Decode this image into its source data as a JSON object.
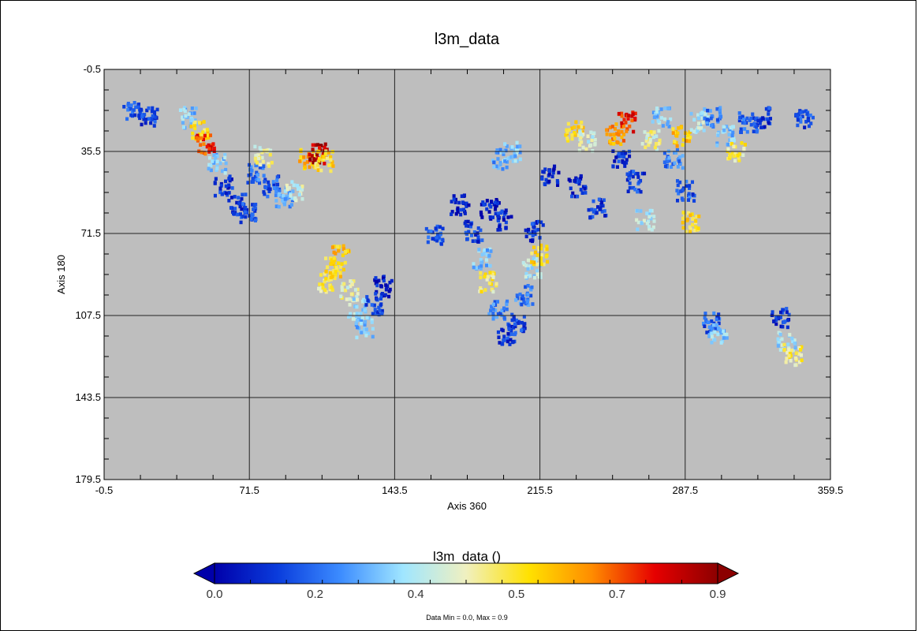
{
  "chart_data": {
    "type": "heatmap",
    "title": "l3m_data",
    "xlabel": "Axis 360",
    "ylabel": "Axis 180",
    "xlim": [
      -0.5,
      359.5
    ],
    "ylim": [
      179.5,
      -0.5
    ],
    "x_ticks": [
      "-0.5",
      "71.5",
      "143.5",
      "215.5",
      "287.5",
      "359.5"
    ],
    "y_ticks": [
      "-0.5",
      "35.5",
      "71.5",
      "107.5",
      "143.5",
      "179.5"
    ],
    "x_tick_values": [
      -0.5,
      71.5,
      143.5,
      215.5,
      287.5,
      359.5
    ],
    "y_tick_values": [
      -0.5,
      35.5,
      71.5,
      107.5,
      143.5,
      179.5
    ],
    "grid": true,
    "background_color": "#bebebe",
    "colorbar": {
      "title": "l3m_data ()",
      "tick_labels": [
        "0.0",
        "0.2",
        "0.4",
        "0.5",
        "0.7",
        "0.9"
      ],
      "tick_values": [
        0.0,
        0.2,
        0.4,
        0.5,
        0.7,
        0.9
      ],
      "range": [
        0.0,
        0.9
      ],
      "colors": [
        "#0000aa",
        "#0a3cdc",
        "#3c8cff",
        "#a0e6ff",
        "#f0f0c0",
        "#ffe100",
        "#ff8c00",
        "#e60000",
        "#8c0000"
      ]
    },
    "blobs": [
      {
        "x": 13,
        "y": 17,
        "v": 0.15
      },
      {
        "x": 21,
        "y": 19,
        "v": 0.1
      },
      {
        "x": 40,
        "y": 20,
        "v": 0.3
      },
      {
        "x": 46,
        "y": 26,
        "v": 0.55
      },
      {
        "x": 49,
        "y": 32,
        "v": 0.75
      },
      {
        "x": 55,
        "y": 40,
        "v": 0.3
      },
      {
        "x": 58,
        "y": 50,
        "v": 0.1
      },
      {
        "x": 65,
        "y": 58,
        "v": 0.08
      },
      {
        "x": 70,
        "y": 62,
        "v": 0.12
      },
      {
        "x": 74,
        "y": 45,
        "v": 0.2
      },
      {
        "x": 78,
        "y": 37,
        "v": 0.45
      },
      {
        "x": 82,
        "y": 50,
        "v": 0.15
      },
      {
        "x": 88,
        "y": 55,
        "v": 0.25
      },
      {
        "x": 93,
        "y": 52,
        "v": 0.4
      },
      {
        "x": 100,
        "y": 38,
        "v": 0.6
      },
      {
        "x": 105,
        "y": 36,
        "v": 0.85
      },
      {
        "x": 108,
        "y": 39,
        "v": 0.55
      },
      {
        "x": 109,
        "y": 92,
        "v": 0.5
      },
      {
        "x": 113,
        "y": 86,
        "v": 0.55
      },
      {
        "x": 116,
        "y": 80,
        "v": 0.6
      },
      {
        "x": 120,
        "y": 96,
        "v": 0.45
      },
      {
        "x": 124,
        "y": 104,
        "v": 0.35
      },
      {
        "x": 128,
        "y": 112,
        "v": 0.3
      },
      {
        "x": 133,
        "y": 102,
        "v": 0.1
      },
      {
        "x": 137,
        "y": 94,
        "v": 0.05
      },
      {
        "x": 163,
        "y": 72,
        "v": 0.15
      },
      {
        "x": 175,
        "y": 58,
        "v": 0.05
      },
      {
        "x": 182,
        "y": 70,
        "v": 0.1
      },
      {
        "x": 186,
        "y": 82,
        "v": 0.3
      },
      {
        "x": 189,
        "y": 92,
        "v": 0.5
      },
      {
        "x": 194,
        "y": 104,
        "v": 0.2
      },
      {
        "x": 198,
        "y": 115,
        "v": 0.1
      },
      {
        "x": 203,
        "y": 110,
        "v": 0.12
      },
      {
        "x": 207,
        "y": 98,
        "v": 0.2
      },
      {
        "x": 211,
        "y": 86,
        "v": 0.35
      },
      {
        "x": 214,
        "y": 80,
        "v": 0.55
      },
      {
        "x": 212,
        "y": 70,
        "v": 0.1
      },
      {
        "x": 195,
        "y": 38,
        "v": 0.25
      },
      {
        "x": 201,
        "y": 35,
        "v": 0.3
      },
      {
        "x": 190,
        "y": 60,
        "v": 0.05
      },
      {
        "x": 197,
        "y": 65,
        "v": 0.08
      },
      {
        "x": 220,
        "y": 45,
        "v": 0.05
      },
      {
        "x": 232,
        "y": 26,
        "v": 0.55
      },
      {
        "x": 238,
        "y": 30,
        "v": 0.4
      },
      {
        "x": 233,
        "y": 50,
        "v": 0.08
      },
      {
        "x": 243,
        "y": 60,
        "v": 0.1
      },
      {
        "x": 252,
        "y": 27,
        "v": 0.65
      },
      {
        "x": 258,
        "y": 22,
        "v": 0.75
      },
      {
        "x": 255,
        "y": 38,
        "v": 0.1
      },
      {
        "x": 262,
        "y": 48,
        "v": 0.12
      },
      {
        "x": 267,
        "y": 65,
        "v": 0.35
      },
      {
        "x": 270,
        "y": 30,
        "v": 0.45
      },
      {
        "x": 275,
        "y": 20,
        "v": 0.3
      },
      {
        "x": 281,
        "y": 38,
        "v": 0.2
      },
      {
        "x": 287,
        "y": 52,
        "v": 0.15
      },
      {
        "x": 290,
        "y": 66,
        "v": 0.55
      },
      {
        "x": 285,
        "y": 28,
        "v": 0.6
      },
      {
        "x": 294,
        "y": 22,
        "v": 0.35
      },
      {
        "x": 300,
        "y": 20,
        "v": 0.2
      },
      {
        "x": 307,
        "y": 28,
        "v": 0.3
      },
      {
        "x": 312,
        "y": 35,
        "v": 0.5
      },
      {
        "x": 318,
        "y": 22,
        "v": 0.15
      },
      {
        "x": 325,
        "y": 20,
        "v": 0.1
      },
      {
        "x": 346,
        "y": 21,
        "v": 0.12
      },
      {
        "x": 300,
        "y": 110,
        "v": 0.15
      },
      {
        "x": 303,
        "y": 115,
        "v": 0.3
      },
      {
        "x": 334,
        "y": 108,
        "v": 0.1
      },
      {
        "x": 337,
        "y": 118,
        "v": 0.35
      },
      {
        "x": 340,
        "y": 124,
        "v": 0.5
      }
    ],
    "data_min": "0.0",
    "data_max": "0.9"
  },
  "footnote": "Data Min = 0.0, Max = 0.9"
}
